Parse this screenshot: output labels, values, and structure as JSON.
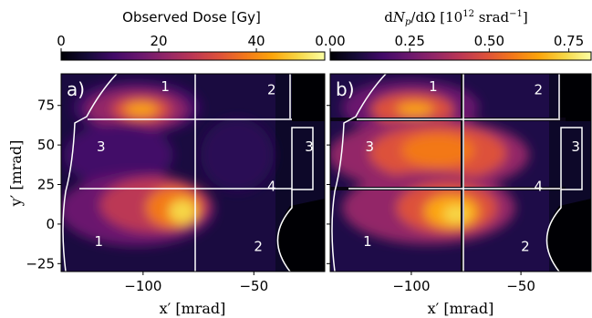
{
  "chart_data": [
    {
      "panel": "a)",
      "type": "heatmap",
      "colorbar": {
        "label": "Observed Dose [Gy]",
        "ticks": [
          "0",
          "20",
          "40"
        ],
        "tick_values": [
          0,
          20,
          40
        ],
        "range": [
          0,
          54
        ],
        "colormap": "inferno",
        "position": "top"
      },
      "xlabel": "x′ [mrad]",
      "ylabel": "y′ [mrad]",
      "xlim": [
        -137,
        -18
      ],
      "ylim": [
        -30,
        95
      ],
      "xticks": [
        -100,
        -50
      ],
      "yticks": [
        -25,
        0,
        25,
        50,
        75
      ],
      "hotspots": [
        {
          "x": -97,
          "y": 73,
          "value": 0.95
        },
        {
          "x": -82,
          "y": 8,
          "value": 1.0
        },
        {
          "x": -112,
          "y": 52,
          "value": 0.35
        }
      ],
      "region_labels": [
        {
          "text": "1",
          "x": -90,
          "y": 84
        },
        {
          "text": "2",
          "x": -42,
          "y": 82
        },
        {
          "text": "3",
          "x": -119,
          "y": 46
        },
        {
          "text": "4",
          "x": -42,
          "y": 21
        },
        {
          "text": "3",
          "x": -25,
          "y": 46
        },
        {
          "text": "1",
          "x": -120,
          "y": -14
        },
        {
          "text": "2",
          "x": -48,
          "y": -17
        }
      ]
    },
    {
      "panel": "b)",
      "type": "heatmap",
      "colorbar": {
        "label": "dNp/dΩ [10¹² srad⁻¹]",
        "ticks": [
          "0.00",
          "0.25",
          "0.50",
          "0.75"
        ],
        "tick_values": [
          0,
          0.25,
          0.5,
          0.75
        ],
        "range": [
          0,
          0.82
        ],
        "colormap": "inferno",
        "position": "top"
      },
      "xlabel": "x′ [mrad]",
      "ylabel": "",
      "xlim": [
        -137,
        -18
      ],
      "ylim": [
        -30,
        95
      ],
      "xticks": [
        -100,
        -50
      ],
      "yticks": [
        -25,
        0,
        25,
        50,
        75
      ],
      "hotspots": [
        {
          "x": -97,
          "y": 72,
          "value": 0.9
        },
        {
          "x": -85,
          "y": 45,
          "value": 0.85
        },
        {
          "x": -82,
          "y": 10,
          "value": 1.0
        }
      ],
      "region_labels": [
        {
          "text": "1",
          "x": -90,
          "y": 84
        },
        {
          "text": "2",
          "x": -42,
          "y": 82
        },
        {
          "text": "3",
          "x": -119,
          "y": 46
        },
        {
          "text": "4",
          "x": -42,
          "y": 21
        },
        {
          "text": "3",
          "x": -25,
          "y": 46
        },
        {
          "text": "1",
          "x": -120,
          "y": -14
        },
        {
          "text": "2",
          "x": -48,
          "y": -17
        }
      ]
    }
  ]
}
